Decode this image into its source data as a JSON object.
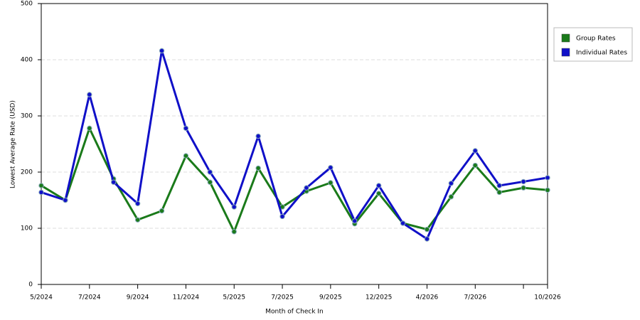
{
  "chart_data": {
    "type": "line",
    "x_label": "Month of Check In",
    "y_label": "Lowest Average Rate (USD)",
    "categories": [
      "5/2024",
      null,
      "7/2024",
      null,
      "9/2024",
      null,
      "11/2024",
      null,
      "5/2025",
      null,
      "7/2025",
      null,
      "9/2025",
      null,
      "12/2025",
      null,
      "4/2026",
      null,
      "7/2026",
      null,
      null,
      "10/2026"
    ],
    "series": [
      {
        "name": "Group Rates",
        "color": "#1a7a1a",
        "values": [
          176,
          150,
          278,
          188,
          115,
          131,
          229,
          182,
          94,
          207,
          138,
          166,
          181,
          108,
          162,
          109,
          98,
          156,
          212,
          164,
          172,
          168
        ]
      },
      {
        "name": "Individual Rates",
        "color": "#1010c8",
        "values": [
          164,
          150,
          338,
          182,
          144,
          416,
          278,
          200,
          138,
          264,
          121,
          172,
          208,
          113,
          176,
          109,
          81,
          180,
          238,
          176,
          183,
          190
        ]
      }
    ],
    "ylim": [
      0,
      500
    ],
    "yticks": [
      0,
      100,
      200,
      300,
      400,
      500
    ],
    "grid": true,
    "legend": "right"
  }
}
